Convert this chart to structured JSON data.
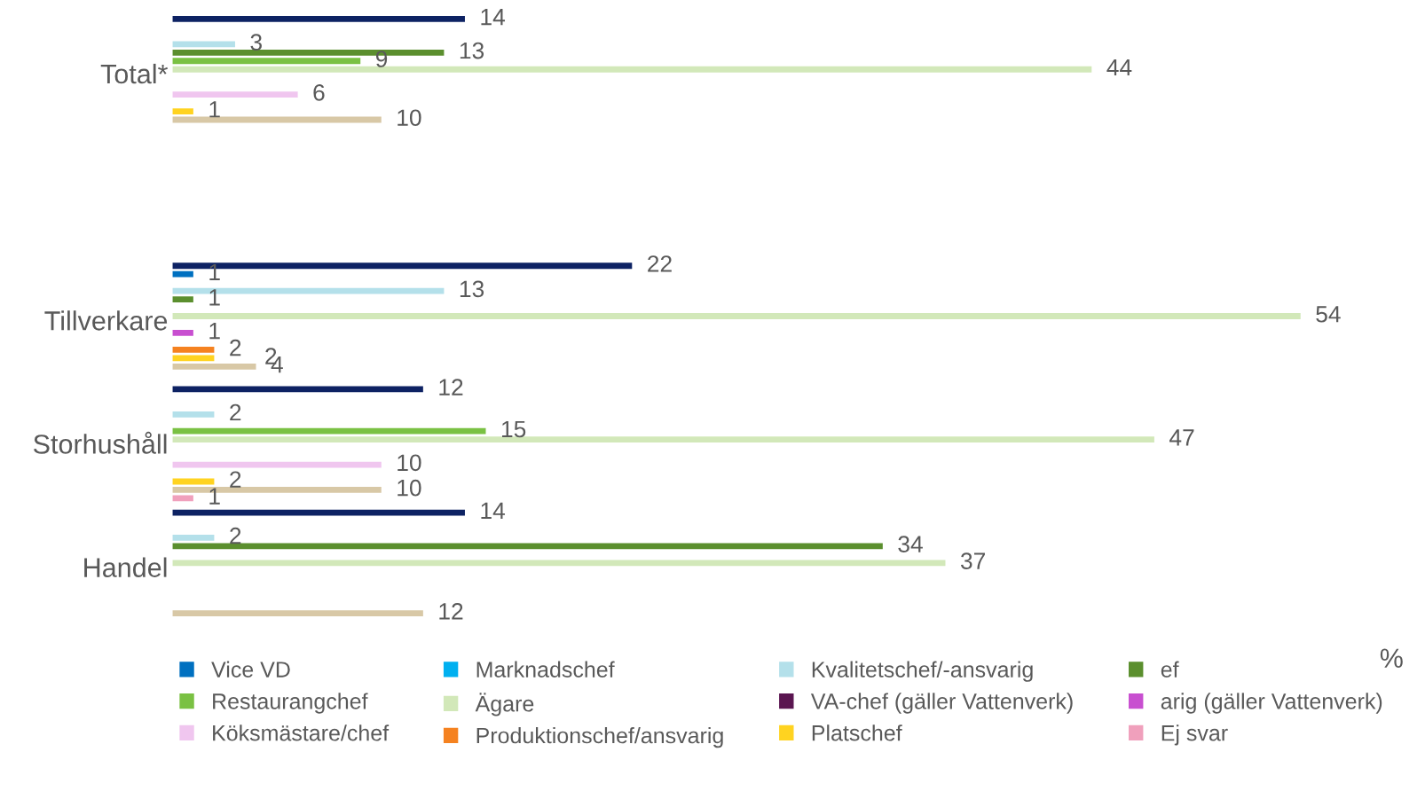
{
  "chart_data": {
    "type": "bar",
    "orientation": "horizontal",
    "categories": [
      "Total*",
      null,
      "Tillverkare",
      "Storhushåll",
      "Handel"
    ],
    "tick_labels": "y",
    "data_labels": true,
    "legend": "bottom",
    "grid": false,
    "annotations": [
      "%"
    ],
    "series": [
      {
        "color": "#0d2263",
        "values": [
          14,
          null,
          22,
          12,
          14
        ]
      },
      {
        "name": "Vice VD",
        "color": "#0070c0",
        "values": [
          null,
          null,
          1,
          null,
          null
        ]
      },
      {
        "name": "Marknadschef",
        "color": "#00b0f0",
        "values": [
          null,
          null,
          null,
          null,
          null
        ]
      },
      {
        "name": "Kvalitetschef/-ansvarig",
        "color": "#b4e0ea",
        "values": [
          3,
          null,
          13,
          2,
          2
        ]
      },
      {
        "name": "ef",
        "color": "#5b8f2e",
        "values": [
          13,
          null,
          1,
          null,
          34
        ]
      },
      {
        "name": "Restaurangchef",
        "color": "#7ac143",
        "values": [
          9,
          null,
          null,
          15,
          null
        ]
      },
      {
        "name": "Ägare",
        "color": "#d2e8b9",
        "values": [
          44,
          null,
          54,
          47,
          37
        ]
      },
      {
        "name": "VA-chef (gäller Vattenverk)",
        "color": "#5a1550",
        "values": [
          null,
          null,
          null,
          null,
          null
        ]
      },
      {
        "name": "arig (gäller Vattenverk)",
        "color": "#c84fd0",
        "values": [
          null,
          null,
          1,
          null,
          null
        ]
      },
      {
        "name": "Köksmästare/chef",
        "color": "#f0c6ef",
        "values": [
          6,
          null,
          null,
          10,
          null
        ]
      },
      {
        "name": "Produktionschef/ansvarig",
        "color": "#f58220",
        "values": [
          null,
          null,
          2,
          null,
          null
        ]
      },
      {
        "name": "Platschef",
        "color": "#ffd320",
        "values": [
          1,
          null,
          2,
          2,
          null
        ]
      },
      {
        "color": "#d8c8a6",
        "values": [
          10,
          null,
          4,
          10,
          12
        ]
      },
      {
        "name": "Ej svar",
        "color": "#f0a0bc",
        "values": [
          null,
          null,
          null,
          1,
          null
        ]
      }
    ]
  }
}
